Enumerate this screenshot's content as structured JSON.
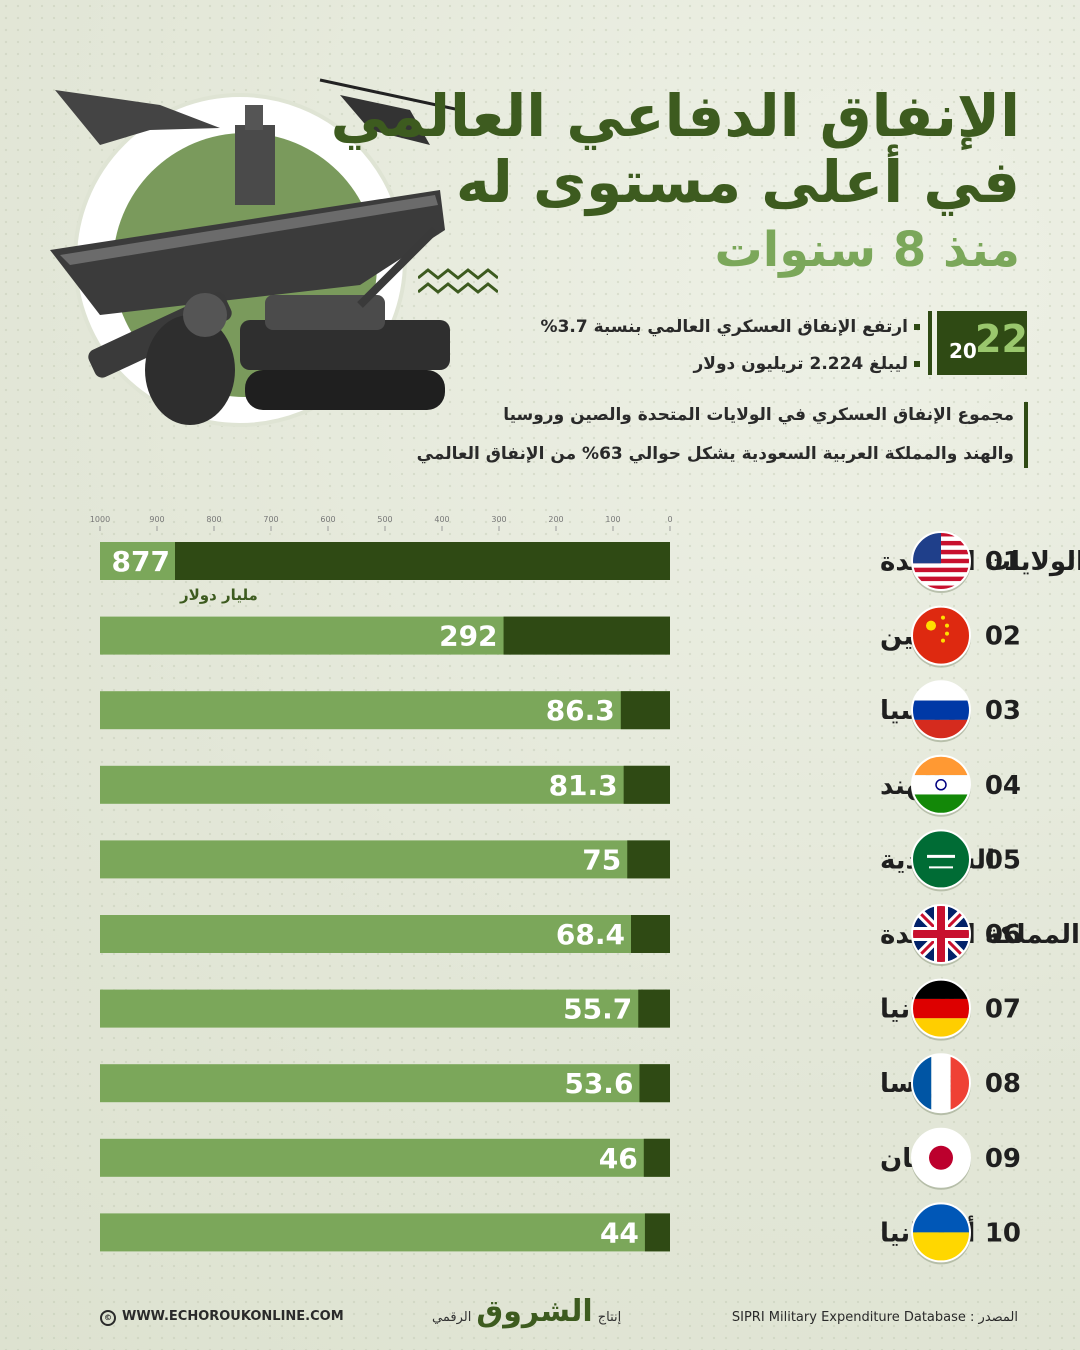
{
  "title": {
    "line1": "الإنفاق الدفاعي العالمي",
    "line2": "في أعلى مستوى له",
    "line3": "منذ 8 سنوات"
  },
  "year": {
    "prefix": "20",
    "suffix": "22"
  },
  "highlights": [
    "ارتفع الإنفاق العسكري العالمي بنسبة 3.7%",
    "ليبلغ 2.224 تريليون دولار",
    "مجموع الإنفاق العسكري في الولايات المتحدة والصين وروسيا",
    "والهند والمملكة العربية السعودية يشكل حوالي 63% من الإنفاق العالمي"
  ],
  "colors": {
    "dark_green": "#2f4a14",
    "light_green": "#7ba75a",
    "title_green": "#3d5b1f"
  },
  "chart_data": {
    "type": "bar",
    "orientation": "horizontal",
    "unit": "مليار دولار",
    "xlim": [
      0,
      1000
    ],
    "ticks": [
      "1000",
      "900",
      "800",
      "700",
      "600",
      "500",
      "400",
      "300",
      "200",
      "100",
      "0"
    ],
    "ranks": [
      "01",
      "02",
      "03",
      "04",
      "05",
      "06",
      "07",
      "08",
      "09",
      "10"
    ],
    "categories": [
      "الولايات المتحدة",
      "الصين",
      "روسيا",
      "الهند",
      "السعودية",
      "المملكة المتحدة",
      "ألمانيا",
      "فرنسا",
      "اليابان",
      "أوكرانيا"
    ],
    "values": [
      877,
      292,
      86.3,
      81.3,
      75,
      68.4,
      55.7,
      53.6,
      46,
      44
    ],
    "value_labels": [
      "877",
      "292",
      "86.3",
      "81.3",
      "75",
      "68.4",
      "55.7",
      "53.6",
      "46",
      "44"
    ],
    "flags": [
      "us-flag-icon",
      "china-flag-icon",
      "russia-flag-icon",
      "india-flag-icon",
      "saudi-flag-icon",
      "uk-flag-icon",
      "germany-flag-icon",
      "france-flag-icon",
      "japan-flag-icon",
      "ukraine-flag-icon"
    ]
  },
  "footer": {
    "website": "WWW.ECHOROUKONLINE.COM",
    "brand_prefix": "إنتاج",
    "brand": "الشروق",
    "brand_suffix": "الرقمي",
    "source": "المصدر : SIPRI Military Expenditure Database"
  }
}
